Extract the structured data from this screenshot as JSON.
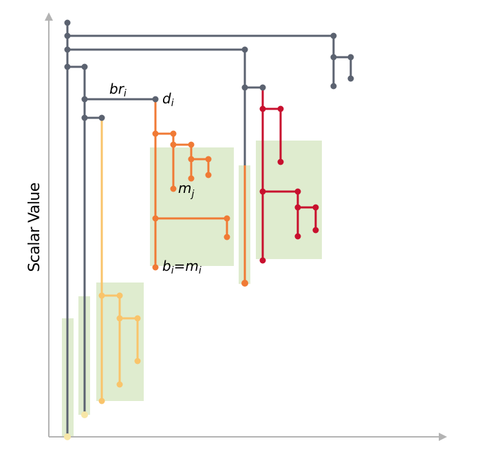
{
  "axes": {
    "y_label": "Scalar Value"
  },
  "labels": {
    "br_main": "br",
    "br_sub": "i",
    "d_main": "d",
    "d_sub": "i",
    "m_main": "m",
    "m_sub": "j",
    "b_main": "b",
    "b_sub": "i",
    "b_eq": "=m",
    "b_eq_sub": "i"
  },
  "colors": {
    "axis": "#b3b3b3",
    "gray_tree": "#5b6270",
    "yellow_tree": "#f9c46b",
    "orange_tree": "#f07a35",
    "red_tree": "#c8102e",
    "region_fill": "#dfeccf"
  }
}
